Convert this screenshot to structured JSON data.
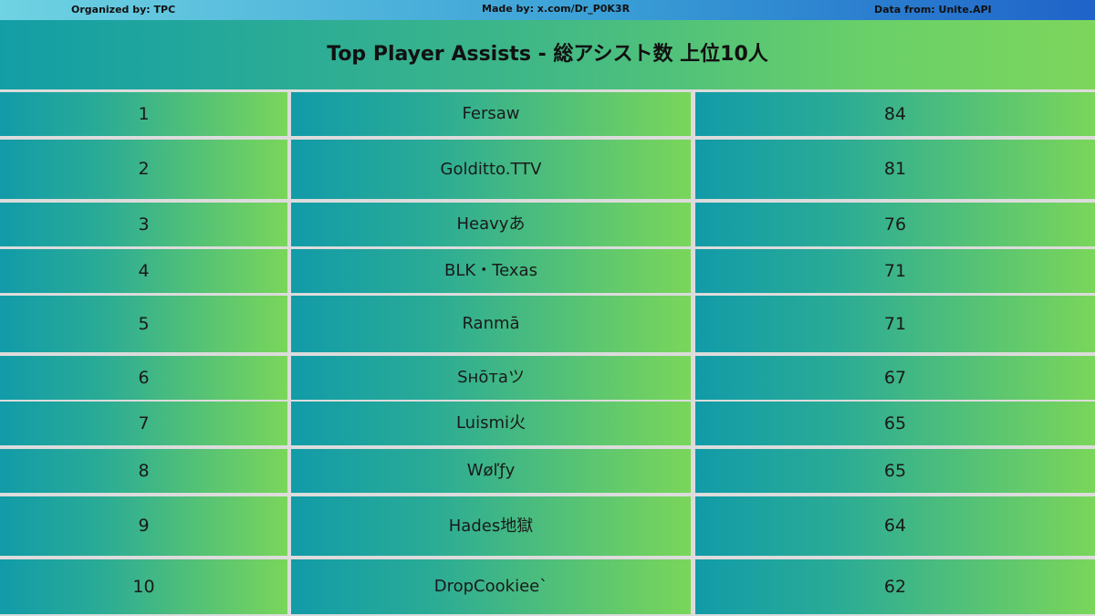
{
  "credits": {
    "organized_by": "Organized by: TPC",
    "made_by": "Made by: x.com/Dr_P0K3R",
    "data_from": "Data from: Unite.API"
  },
  "colors": {
    "gradient_start": "#119ba8",
    "gradient_end": "#7ad65a",
    "header_bar_start": "#6fd3e2",
    "header_bar_end": "#1f63c9"
  },
  "chart_data": {
    "type": "table",
    "title": "Top Player Assists - 総アシスト数 上位10人",
    "columns": [
      "",
      "",
      ""
    ],
    "rows": [
      {
        "rank": "1",
        "player": "Fersaw",
        "assists": 84
      },
      {
        "rank": "2",
        "player": "Golditto.TTV",
        "assists": 81
      },
      {
        "rank": "3",
        "player": "Heavyあ",
        "assists": 76
      },
      {
        "rank": "4",
        "player": "BLK・Texas",
        "assists": 71
      },
      {
        "rank": "5",
        "player": "Ranmā",
        "assists": 71
      },
      {
        "rank": "6",
        "player": "Sнōтаツ",
        "assists": 67
      },
      {
        "rank": "7",
        "player": "Luismi火",
        "assists": 65
      },
      {
        "rank": "8",
        "player": "Wøľƒy",
        "assists": 65
      },
      {
        "rank": "9",
        "player": "Hades地獄",
        "assists": 64
      },
      {
        "rank": "10",
        "player": "DropCookiee`",
        "assists": 62
      }
    ]
  }
}
